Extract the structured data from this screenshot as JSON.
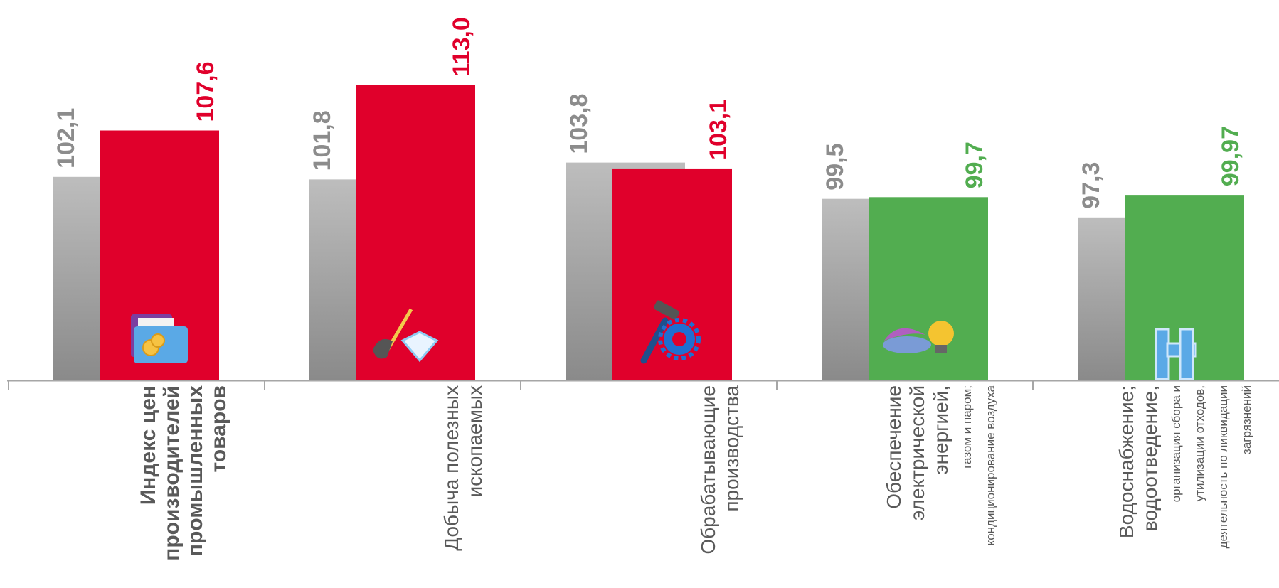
{
  "chart_data": {
    "type": "bar",
    "categories": [
      {
        "lines": [
          "Индекс цен",
          "производителей",
          "промышленных",
          "товаров"
        ],
        "bold": true
      },
      {
        "lines": [
          "Добыча полезных",
          "ископаемых"
        ],
        "bold": false
      },
      {
        "lines": [
          "Обрабатывающие",
          "производства"
        ],
        "bold": false
      },
      {
        "lines": [
          "Обеспечение",
          "электрической",
          "энергией,",
          "газом и паром;",
          "кондиционирование воздуха"
        ],
        "bold": false,
        "small_from": 3
      },
      {
        "lines": [
          "Водоснабжение;",
          "водоотведение,",
          "организация сбора и",
          "утилизации отходов,",
          "деятельность по ликвидации",
          "загрязнений"
        ],
        "bold": false,
        "small_from": 2
      }
    ],
    "series": [
      {
        "values": [
          102.1,
          101.8,
          103.8,
          99.5,
          97.3
        ],
        "labels": [
          "102,1",
          "101,8",
          "103,8",
          "99,5",
          "97,3"
        ],
        "style": "gray"
      },
      {
        "values": [
          107.6,
          113.0,
          103.1,
          99.7,
          99.97
        ],
        "labels": [
          "107,6",
          "113,0",
          "103,1",
          "99,7",
          "99,97"
        ],
        "style": "colored"
      }
    ],
    "icons": [
      "folder-coins-icon",
      "shovel-diamond-icon",
      "hammer-gear-icon",
      "gas-burner-bulb-icon",
      "pipe-icon"
    ],
    "ylim": [
      78,
      113.2
    ],
    "colors": {
      "red": "#e0002b",
      "green": "#52ad50",
      "gray_top": "#bdbdbd",
      "gray_bottom": "#8a8a8a",
      "gray_label": "#8c8c8c",
      "axis": "#a6a6a6",
      "category_text": "#595959"
    }
  }
}
